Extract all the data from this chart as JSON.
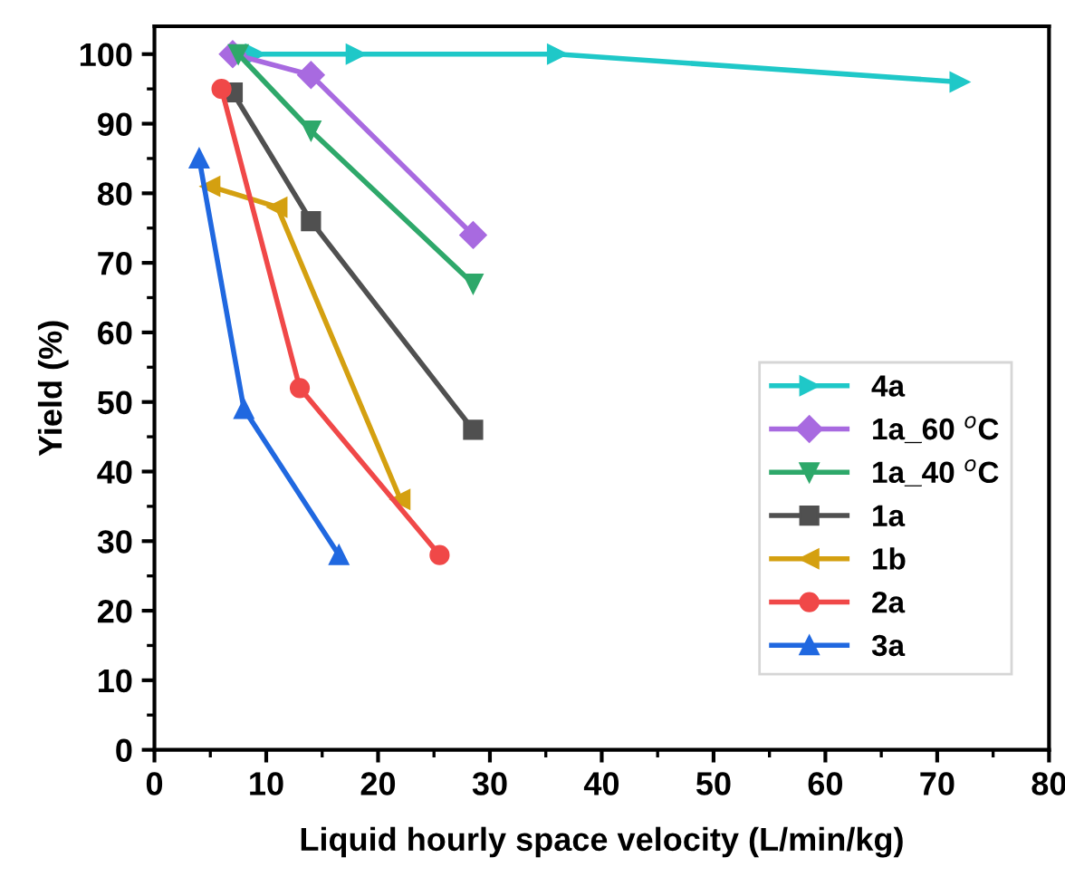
{
  "chart_data": {
    "type": "line",
    "xlabel": "Liquid hourly space velocity (L/min/kg)",
    "ylabel": "Yield (%)",
    "xlim": [
      0,
      80
    ],
    "xticks": [
      0,
      10,
      20,
      30,
      40,
      50,
      60,
      70,
      80
    ],
    "ylim": [
      0,
      104
    ],
    "yticks": [
      0,
      10,
      20,
      30,
      40,
      50,
      60,
      70,
      80,
      90,
      100
    ],
    "grid": false,
    "legend": "right",
    "line_style": "solid",
    "series": [
      {
        "name": "4a",
        "color": "#1fc8c8",
        "marker": "triangle-right",
        "x": [
          9,
          18,
          36,
          72
        ],
        "values": [
          100,
          100,
          100,
          96
        ]
      },
      {
        "name": "1a_60 $^{o}$C",
        "color": "#a86ae0",
        "marker": "diamond",
        "x": [
          7,
          14,
          28.5
        ],
        "values": [
          100,
          97,
          74
        ]
      },
      {
        "name": "1a_40 $^{o}$C",
        "color": "#2ea86a",
        "marker": "triangle-down",
        "x": [
          7.5,
          14,
          28.5
        ],
        "values": [
          100,
          89,
          67
        ]
      },
      {
        "name": "1a",
        "color": "#505050",
        "marker": "square",
        "x": [
          7,
          14,
          28.5
        ],
        "values": [
          94.5,
          76,
          46
        ]
      },
      {
        "name": "1b",
        "color": "#d4a010",
        "marker": "triangle-left",
        "x": [
          5,
          11,
          22
        ],
        "values": [
          81,
          78,
          36
        ]
      },
      {
        "name": "2a",
        "color": "#f04848",
        "marker": "circle",
        "x": [
          6,
          13,
          25.5
        ],
        "values": [
          95,
          52,
          28
        ]
      },
      {
        "name": "3a",
        "color": "#2068e0",
        "marker": "triangle",
        "x": [
          4,
          8,
          16.5
        ],
        "values": [
          85,
          49,
          28
        ]
      }
    ]
  }
}
